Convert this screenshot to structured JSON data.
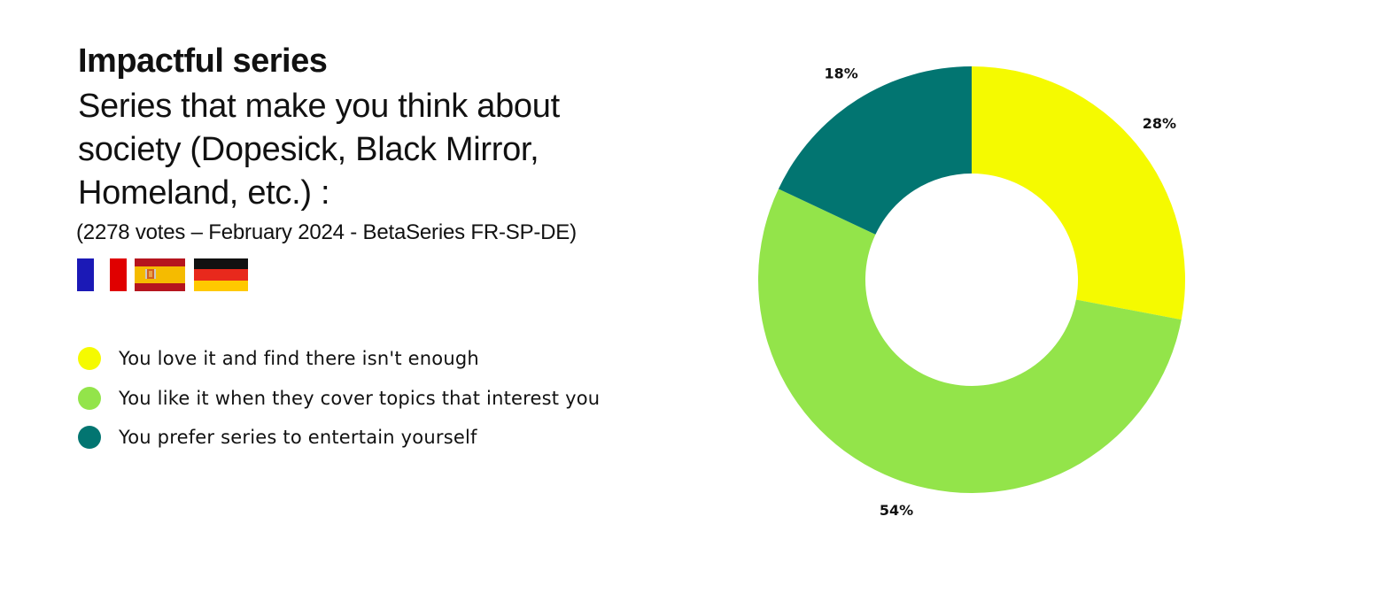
{
  "title": "Impactful series",
  "subtitle": "Series that make you think about society (Dopesick, Black Mirror, Homeland, etc.) :",
  "source": "(2278 votes – February 2024 - BetaSeries FR-SP-DE)",
  "flags": [
    "france-flag-icon",
    "spain-flag-icon",
    "germany-flag-icon"
  ],
  "chart_data": {
    "type": "pie",
    "donut": true,
    "legend_position": "left",
    "series": [
      {
        "name": "You love it and find there isn't enough",
        "value": 28,
        "label": "28%",
        "color": "#f5fa00"
      },
      {
        "name": "You like it when they cover topics that interest you",
        "value": 54,
        "label": "54%",
        "color": "#93e44a"
      },
      {
        "name": "You prefer series to entertain yourself",
        "value": 18,
        "label": "18%",
        "color": "#027571"
      }
    ]
  }
}
